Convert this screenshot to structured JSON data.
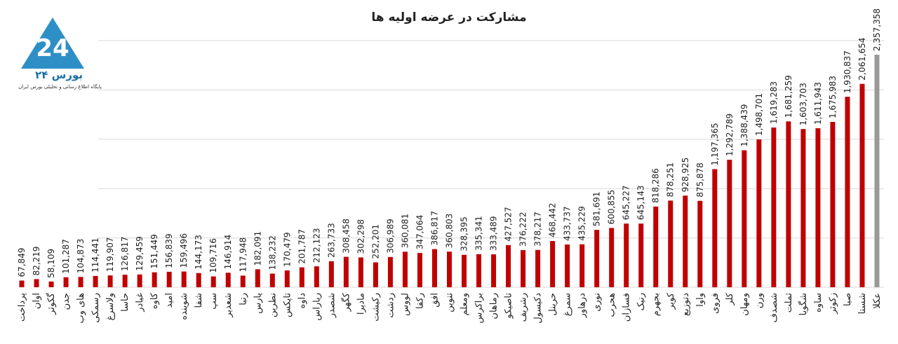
{
  "logo": {
    "name": "بورس ۲۴",
    "tagline": "پایگاه اطلاع رسانی و تحلیلی بورس ایران"
  },
  "chart_data": {
    "type": "bar",
    "title": "مشارکت در عرضه اولیه ها",
    "categories": [
      "پرداخت",
      "اوان",
      "گکوثر",
      "جدن",
      "های وب",
      "رسمکی",
      "ولاسرغ",
      "حاسا",
      "غبادر",
      "کاوه",
      "امید",
      "شوینده",
      "شفا",
      "سپ",
      "شعدیر",
      "رتبا",
      "پارس",
      "نطرین",
      "تاپکس",
      "داوه",
      "ریاراس",
      "شصدر",
      "کگهر",
      "مادیرا",
      "رکیشت",
      "ردشت",
      "لووس",
      "رکفا",
      "افق",
      "تنوین",
      "ومعلم",
      "براکرس",
      "رماهان",
      "تاصیکو",
      "رشریف",
      "دکیسول",
      "حرینل",
      "سمرغ",
      "درهاور",
      "نوری",
      "هحرب",
      "فسازان",
      "رنیک",
      "بجهرم",
      "کویر",
      "دتوزیع",
      "واوا",
      "فروی",
      "کلر",
      "ومهان",
      "ورن",
      "شصدف",
      "ثملت",
      "شگویا",
      "ساوه",
      "زکوثر",
      "صبا",
      "شستا",
      "عکلا"
    ],
    "values": [
      67849,
      82219,
      58109,
      101287,
      104873,
      114441,
      119907,
      126817,
      129459,
      151449,
      156839,
      159496,
      144173,
      109716,
      146914,
      117948,
      182091,
      138232,
      170479,
      201787,
      212123,
      263733,
      308458,
      302298,
      252201,
      306989,
      360081,
      347064,
      386817,
      360803,
      328395,
      335341,
      333489,
      427527,
      376222,
      378217,
      468442,
      433737,
      435229,
      581691,
      600855,
      645227,
      645143,
      818286,
      878251,
      928925,
      875878,
      1197365,
      1292789,
      1388439,
      1498701,
      1619283,
      1681259,
      1603703,
      1611943,
      1675983,
      1930837,
      2061654,
      2357358
    ],
    "value_labels": [
      "67,849",
      "82,219",
      "58,109",
      "101,287",
      "104,873",
      "114,441",
      "119,907",
      "126,817",
      "129,459",
      "151,449",
      "156,839",
      "159,496",
      "144,173",
      "109,716",
      "146,914",
      "117,948",
      "182,091",
      "138,232",
      "170,479",
      "201,787",
      "212,123",
      "263,733",
      "308,458",
      "302,298",
      "252,201",
      "306,989",
      "360,081",
      "347,064",
      "386,817",
      "360,803",
      "328,395",
      "335,341",
      "333,489",
      "427,527",
      "376,222",
      "378,217",
      "468,442",
      "433,737",
      "435,229",
      "581,691",
      "600,855",
      "645,227",
      "645,143",
      "818,286",
      "878,251",
      "928,925",
      "875,878",
      "1,197,365",
      "1,292,789",
      "1,388,439",
      "1,498,701",
      "1,619,283",
      "1,681,259",
      "1,603,703",
      "1,611,943",
      "1,675,983",
      "1,930,837",
      "2,061,654",
      "2,357,358"
    ],
    "color": "#c00000",
    "highlight_color": "#999999",
    "highlight_index": 58,
    "ylim": [
      0,
      2500000
    ],
    "yticks": [
      0,
      500000,
      1000000,
      1500000,
      2000000,
      2500000
    ],
    "grid": true
  }
}
